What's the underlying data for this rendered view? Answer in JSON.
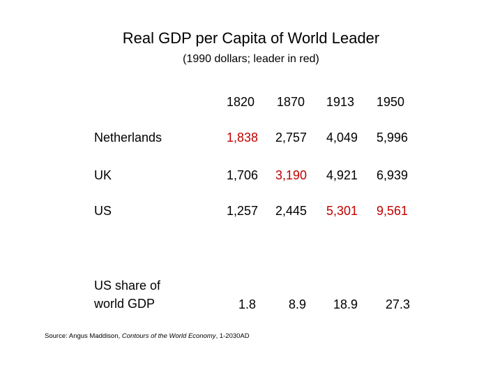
{
  "title": "Real GDP per Capita of World Leader",
  "subtitle": "(1990 dollars; leader in red)",
  "years": [
    "1820",
    "1870",
    "1913",
    "1950"
  ],
  "rows": [
    {
      "country": "Netherlands",
      "values": [
        "1,838",
        "2,757",
        "4,049",
        "5,996"
      ],
      "leader": [
        true,
        false,
        false,
        false
      ]
    },
    {
      "country": "UK",
      "values": [
        "1,706",
        "3,190",
        "4,921",
        "6,939"
      ],
      "leader": [
        false,
        true,
        false,
        false
      ]
    },
    {
      "country": "US",
      "values": [
        "1,257",
        "2,445",
        "5,301",
        "9,561"
      ],
      "leader": [
        false,
        false,
        true,
        true
      ]
    }
  ],
  "share": {
    "label_line1": "US share of",
    "label_line2": "world GDP",
    "values": [
      "1.8",
      "8.9",
      "18.9",
      "27.3"
    ]
  },
  "source": {
    "prefix": "Source:  Angus Maddison, ",
    "work": "Contours of the World Economy",
    "suffix": ", 1-2030AD"
  },
  "colors": {
    "leader": "#c00000",
    "text": "#000000",
    "background": "#ffffff"
  }
}
